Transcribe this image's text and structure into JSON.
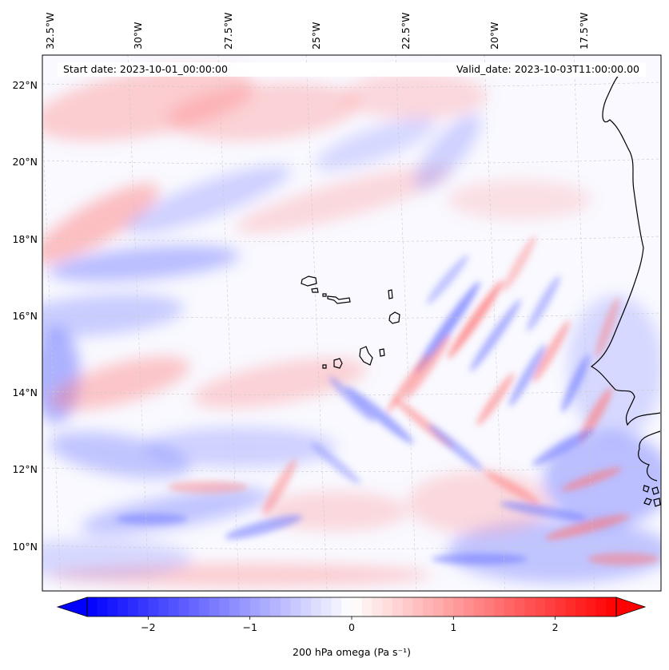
{
  "map": {
    "start_date_text": "Start date: 2023-10-01_00:00:00",
    "valid_date_text": "Valid_date: 2023-10-03T11:00:00.00",
    "longitude_labels": [
      "32.5°W",
      "30°W",
      "27.5°W",
      "25°W",
      "22.5°W",
      "20°W",
      "17.5°W"
    ],
    "latitude_labels": [
      "22°N",
      "20°N",
      "18°N",
      "16°N",
      "14°N",
      "12°N",
      "10°N"
    ],
    "gridlines": true,
    "coastline_color": "#000000",
    "field": "200 hPa omega",
    "colormap": [
      "#0000ff",
      "#ffffff",
      "#ff0000"
    ]
  },
  "colorbar": {
    "label": "200 hPa omega (Pa s⁻¹)",
    "ticks": [
      "−2",
      "−1",
      "0",
      "1",
      "2"
    ],
    "tick_values": [
      -2,
      -1,
      0,
      1,
      2
    ],
    "range": [
      -2.6,
      2.6
    ],
    "extend": "both",
    "orientation": "horizontal"
  }
}
